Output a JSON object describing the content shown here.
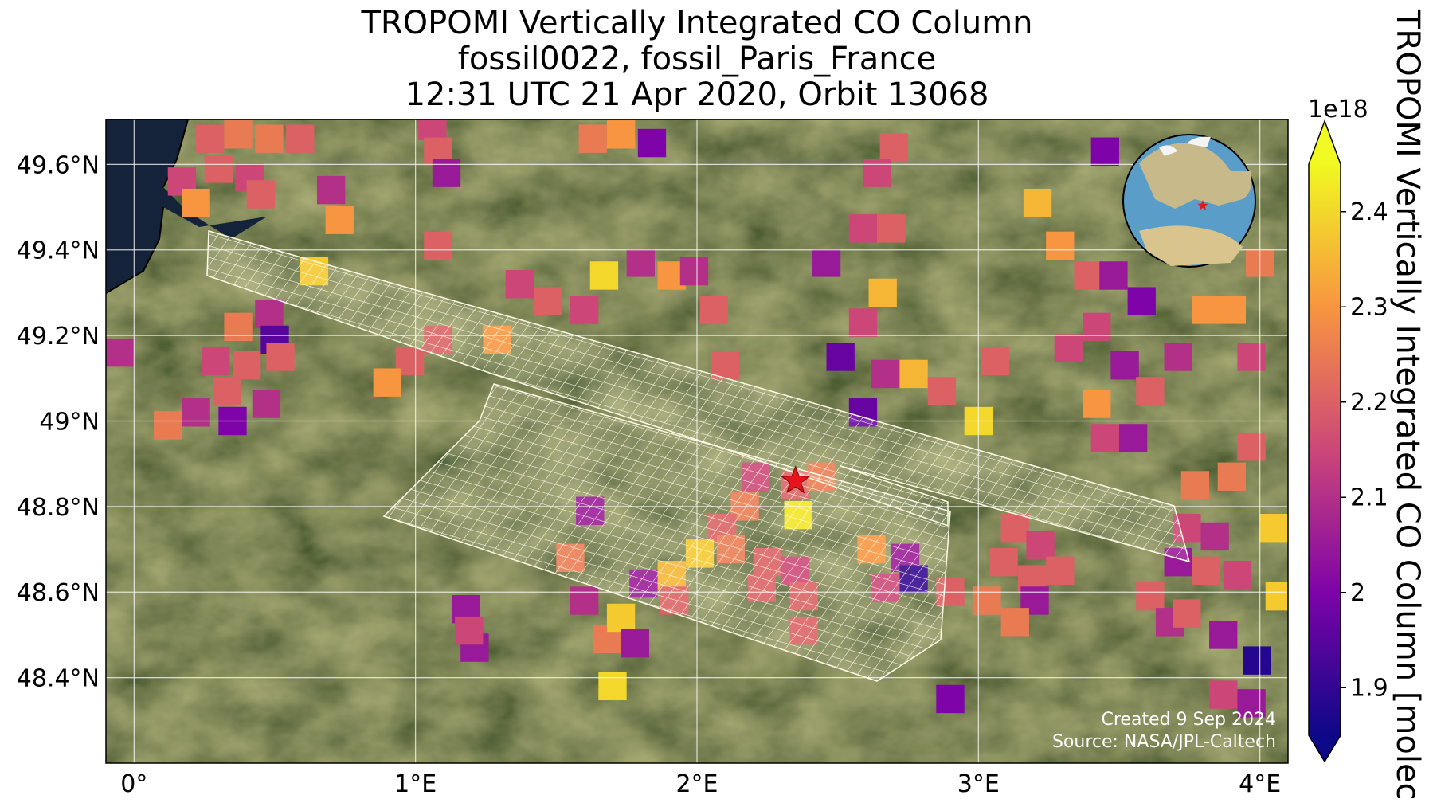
{
  "chart_data": {
    "type": "map",
    "title": [
      "TROPOMI Vertically Integrated CO Column",
      "fossil0022, fossil_Paris_France",
      "12:31 UTC 21 Apr 2020, Orbit 13068"
    ],
    "xlim": [
      -0.1,
      4.1
    ],
    "ylim": [
      48.2,
      49.705
    ],
    "xticks": [
      {
        "value": 0,
        "label": "0°"
      },
      {
        "value": 1,
        "label": "1°E"
      },
      {
        "value": 2,
        "label": "2°E"
      },
      {
        "value": 3,
        "label": "3°E"
      },
      {
        "value": 4,
        "label": "4°E"
      }
    ],
    "yticks": [
      {
        "value": 48.4,
        "label": "48.4°N"
      },
      {
        "value": 48.6,
        "label": "48.6°N"
      },
      {
        "value": 48.8,
        "label": "48.8°N"
      },
      {
        "value": 49,
        "label": "49°N"
      },
      {
        "value": 49.2,
        "label": "49.2°N"
      },
      {
        "value": 49.4,
        "label": "49.4°N"
      },
      {
        "value": 49.6,
        "label": "49.6°N"
      }
    ],
    "grid": true,
    "colorbar": {
      "label": "TROPOMI Vertically Integrated CO Column [molec c",
      "offset_label": "1e18",
      "clim": [
        1.85,
        2.45
      ],
      "ticks": [
        1.9,
        2,
        2.1,
        2.2,
        2.3,
        2.4
      ],
      "colormap": [
        "#0d0887",
        "#7e03a8",
        "#cc4778",
        "#f89540",
        "#f0f921"
      ]
    },
    "site": {
      "lon": 2.35,
      "lat": 48.86,
      "color": "#e8141b"
    },
    "pixels": {
      "lon": [
        0.27,
        0.37,
        0.48,
        0.59,
        0.17,
        0.3,
        0.41,
        0.22,
        0.45,
        0.7,
        0.73,
        0.64,
        0.37,
        0.48,
        0.5,
        0.29,
        0.4,
        0.52,
        0.33,
        0.47,
        0.22,
        0.12,
        0.35,
        -0.05,
        1.06,
        1.08,
        1.11,
        1.08,
        1.63,
        1.73,
        1.84,
        1.67,
        1.8,
        1.91,
        1.99,
        1.37,
        1.47,
        1.6,
        1.29,
        1.08,
        0.98,
        0.9,
        2.06,
        2.1,
        2.46,
        2.59,
        2.69,
        2.66,
        2.59,
        2.51,
        2.67,
        2.77,
        2.87,
        3.0,
        3.06,
        2.59,
        2.7,
        2.64,
        2.35,
        2.21,
        2.44,
        2.36,
        2.17,
        2.09,
        2.01,
        1.91,
        2.12,
        2.25,
        2.35,
        2.23,
        2.38,
        2.38,
        1.92,
        1.81,
        1.62,
        1.55,
        1.6,
        1.68,
        1.73,
        1.78,
        1.7,
        2.62,
        2.74,
        2.77,
        2.67,
        1.18,
        1.21,
        1.19,
        3.13,
        3.22,
        3.09,
        3.19,
        3.29,
        3.03,
        3.2,
        3.13,
        2.9,
        2.9,
        3.21,
        3.29,
        3.39,
        3.48,
        3.58,
        3.42,
        3.32,
        3.52,
        3.61,
        3.42,
        3.45,
        3.55,
        3.81,
        3.9,
        3.45,
        4.0,
        3.97,
        3.71,
        3.77,
        3.9,
        3.97,
        4.05,
        3.84,
        3.74,
        3.71,
        3.81,
        3.92,
        3.61,
        3.68,
        3.74,
        3.87,
        3.99,
        3.87,
        3.97,
        4.07
      ],
      "lat": [
        49.66,
        49.67,
        49.66,
        49.66,
        49.56,
        49.59,
        49.57,
        49.51,
        49.53,
        49.54,
        49.47,
        49.35,
        49.22,
        49.25,
        49.19,
        49.14,
        49.13,
        49.15,
        49.07,
        49.04,
        49.02,
        48.99,
        49.0,
        49.16,
        49.69,
        49.63,
        49.58,
        49.41,
        49.66,
        49.67,
        49.65,
        49.34,
        49.37,
        49.34,
        49.35,
        49.32,
        49.28,
        49.26,
        49.19,
        49.19,
        49.14,
        49.09,
        49.26,
        49.13,
        49.37,
        49.45,
        49.45,
        49.3,
        49.23,
        49.15,
        49.11,
        49.11,
        49.07,
        49.0,
        49.14,
        49.02,
        49.64,
        49.58,
        48.85,
        48.87,
        48.87,
        48.78,
        48.8,
        48.75,
        48.69,
        48.64,
        48.7,
        48.67,
        48.65,
        48.61,
        48.59,
        48.51,
        48.58,
        48.62,
        48.79,
        48.68,
        48.58,
        48.49,
        48.54,
        48.48,
        48.38,
        48.7,
        48.68,
        48.63,
        48.61,
        48.56,
        48.47,
        48.51,
        48.75,
        48.71,
        48.67,
        48.63,
        48.65,
        48.58,
        48.58,
        48.53,
        48.6,
        48.35,
        49.51,
        49.41,
        49.34,
        49.34,
        49.28,
        49.22,
        49.17,
        49.13,
        49.07,
        49.04,
        48.96,
        48.96,
        49.26,
        49.26,
        49.63,
        49.37,
        49.15,
        49.15,
        48.85,
        48.87,
        48.94,
        48.75,
        48.73,
        48.75,
        48.67,
        48.65,
        48.64,
        48.59,
        48.53,
        48.55,
        48.5,
        48.44,
        48.36,
        48.34,
        48.59
      ],
      "values": [
        2.2,
        2.25,
        2.25,
        2.2,
        2.15,
        2.2,
        2.15,
        2.3,
        2.2,
        2.1,
        2.3,
        2.38,
        2.25,
        2.1,
        1.95,
        2.15,
        2.2,
        2.2,
        2.2,
        2.1,
        2.1,
        2.25,
        2.0,
        2.1,
        2.15,
        2.2,
        2.05,
        2.2,
        2.25,
        2.3,
        2.0,
        2.4,
        2.1,
        2.3,
        2.1,
        2.15,
        2.2,
        2.15,
        2.3,
        2.2,
        2.2,
        2.3,
        2.2,
        2.2,
        2.05,
        2.15,
        2.2,
        2.35,
        2.15,
        1.97,
        2.1,
        2.35,
        2.2,
        2.4,
        2.2,
        1.97,
        2.2,
        2.15,
        2.2,
        2.15,
        2.25,
        2.42,
        2.25,
        2.2,
        2.38,
        2.35,
        2.25,
        2.2,
        2.15,
        2.2,
        2.2,
        2.2,
        2.2,
        2.05,
        2.05,
        2.25,
        2.1,
        2.25,
        2.38,
        2.05,
        2.4,
        2.3,
        2.05,
        1.9,
        2.15,
        2.05,
        2.05,
        2.15,
        2.2,
        2.15,
        2.2,
        2.2,
        2.2,
        2.25,
        2.05,
        2.25,
        2.2,
        2.0,
        2.35,
        2.3,
        2.2,
        2.05,
        2.0,
        2.15,
        2.15,
        2.05,
        2.2,
        2.3,
        2.15,
        2.05,
        2.3,
        2.3,
        2.0,
        2.25,
        2.15,
        2.1,
        2.25,
        2.25,
        2.2,
        2.38,
        2.1,
        2.15,
        2.05,
        2.2,
        2.15,
        2.2,
        2.1,
        2.2,
        2.05,
        1.88,
        2.15,
        2.05,
        2.38
      ]
    },
    "credits": [
      "Created 9 Sep 2024",
      "Source: NASA/JPL-Caltech"
    ]
  }
}
